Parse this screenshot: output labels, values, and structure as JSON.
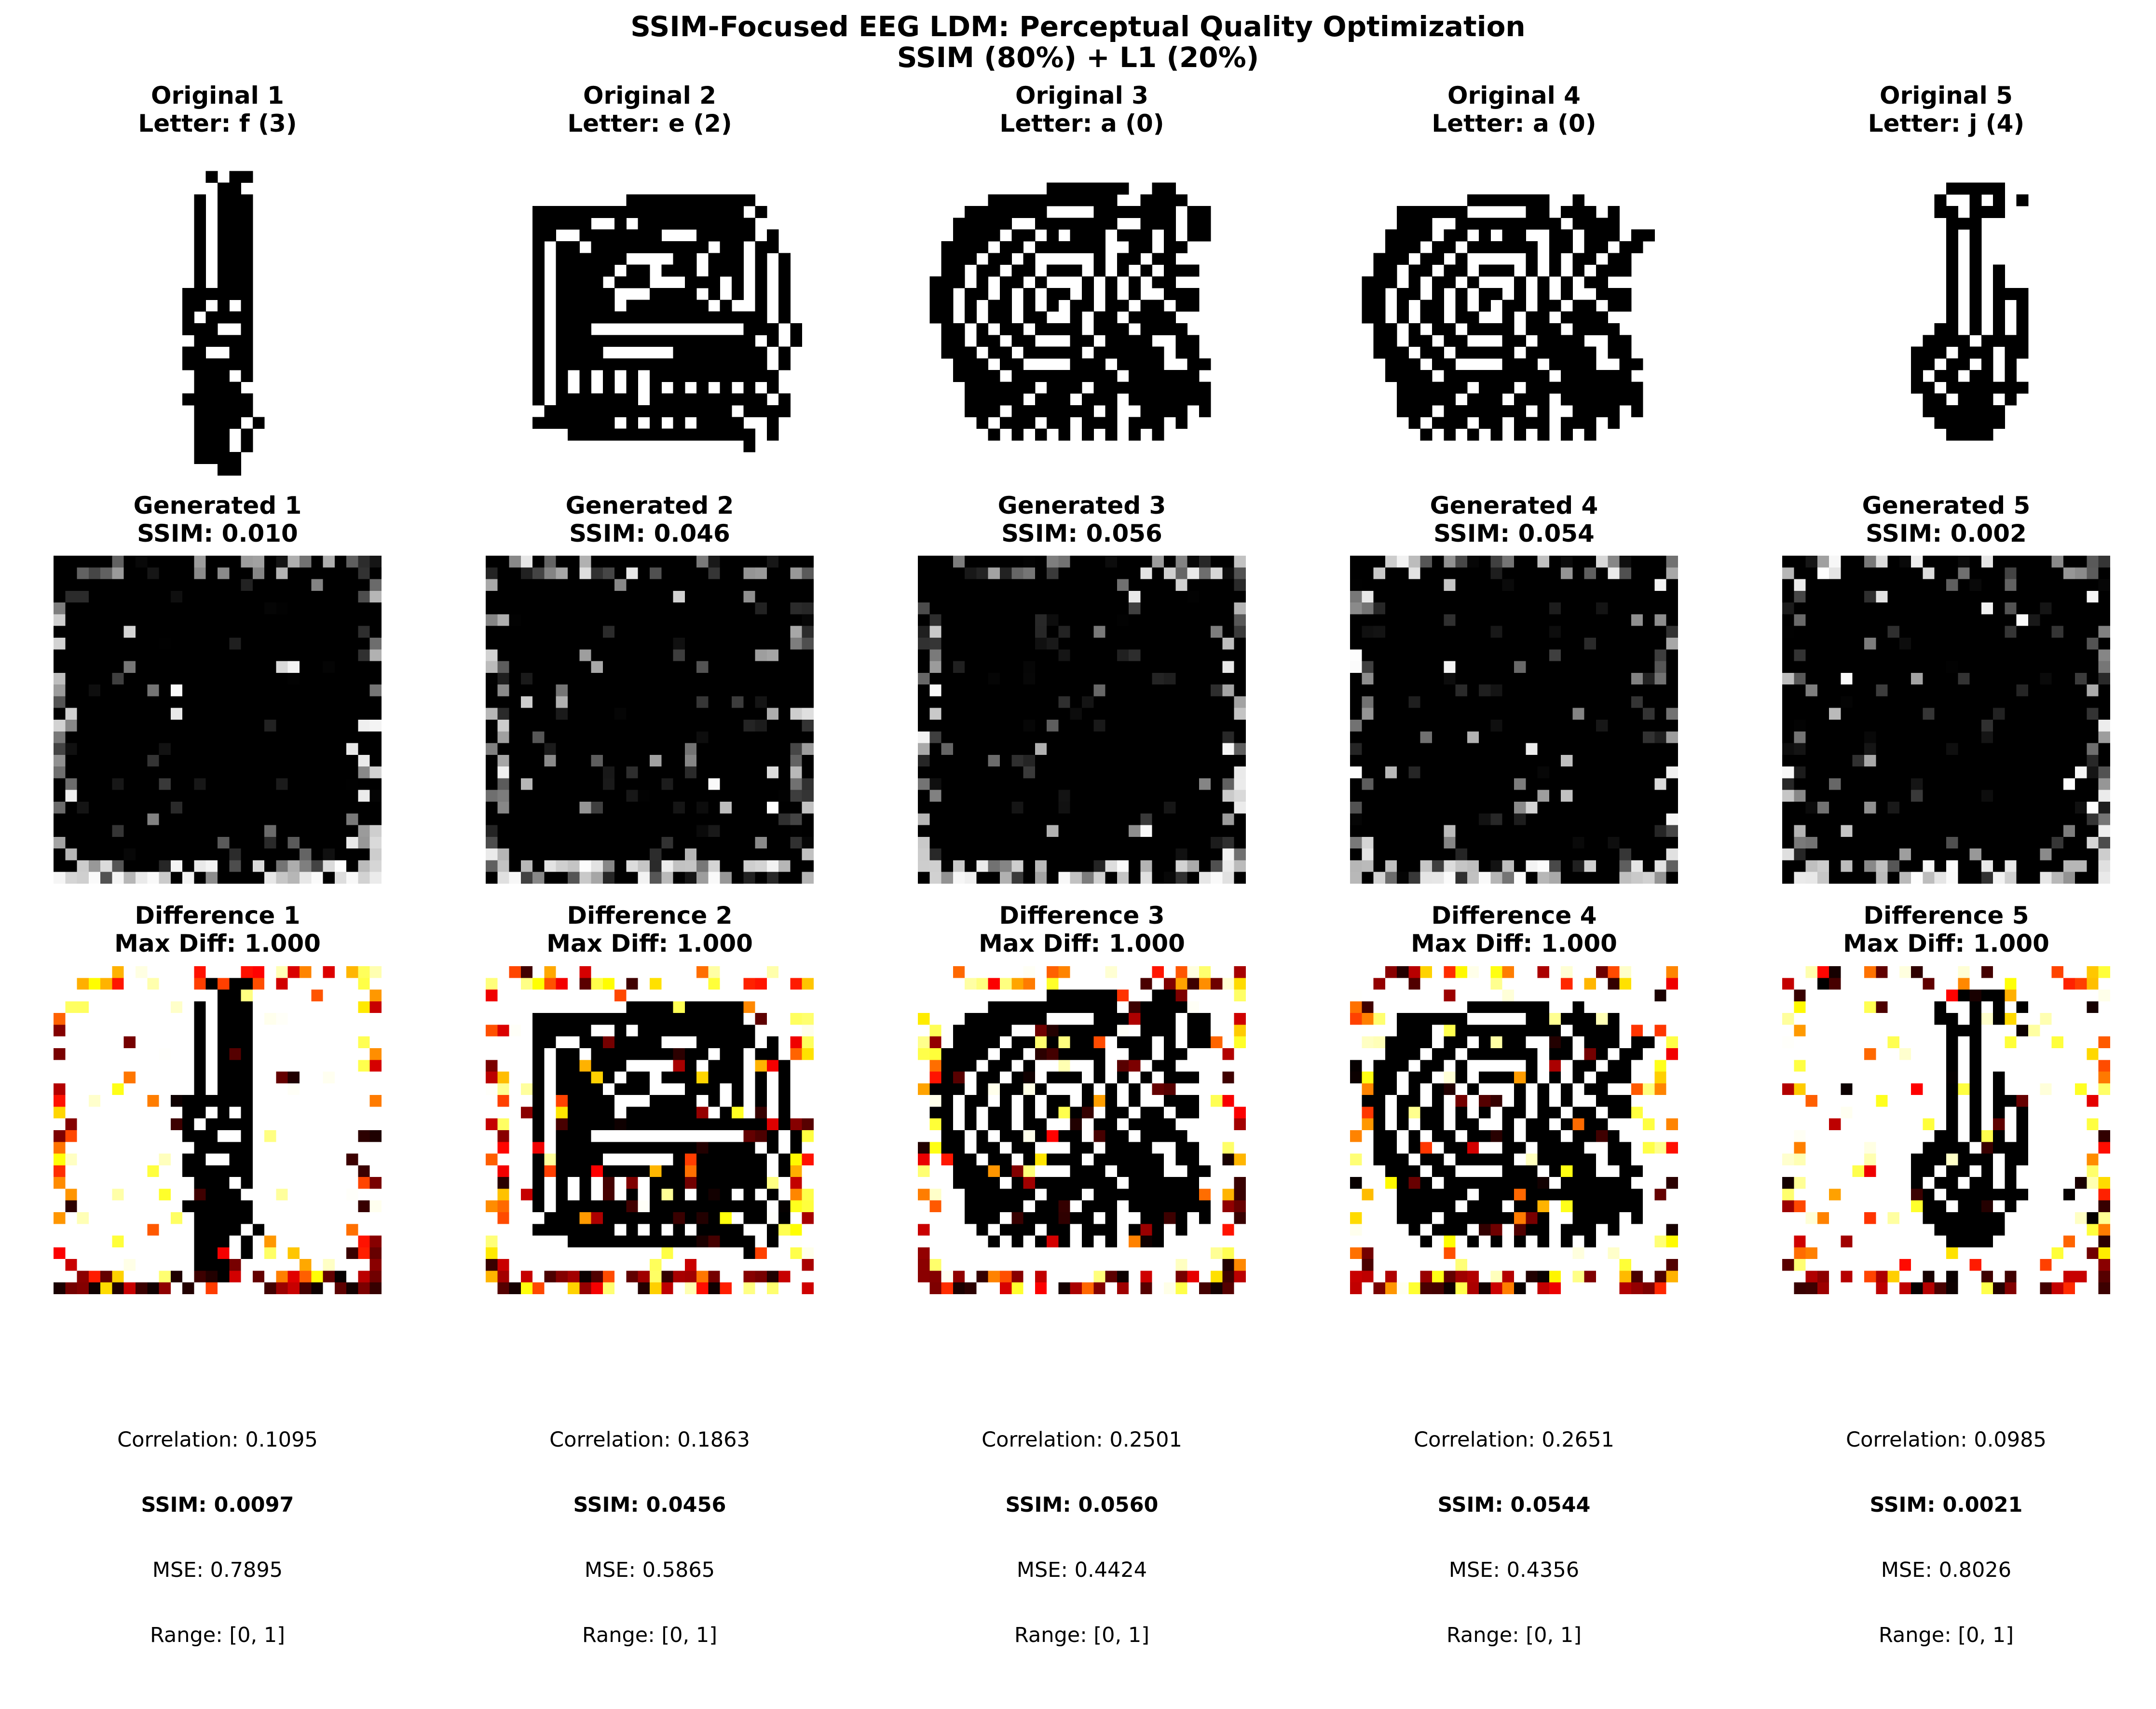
{
  "figure": {
    "title_line1": "SSIM-Focused EEG LDM: Perceptual Quality Optimization",
    "title_line2": "SSIM (80%) + L1 (20%)"
  },
  "chart_data": {
    "type": "heatmap",
    "grid_size": 28,
    "colormaps": {
      "original": "gray",
      "generated": "gray",
      "difference": "hot"
    },
    "samples": [
      {
        "original_title": "Original 1",
        "letter_label": "Letter: f (3)",
        "generated_title": "Generated 1",
        "ssim_label": "SSIM: 0.010",
        "difference_title": "Difference 1",
        "maxdiff_label": "Max Diff: 1.000",
        "correlation": "Correlation: 0.1095",
        "ssim": "SSIM: 0.0097",
        "mse": "MSE: 0.7895",
        "range": "Range: [0, 1]"
      },
      {
        "original_title": "Original 2",
        "letter_label": "Letter: e (2)",
        "generated_title": "Generated 2",
        "ssim_label": "SSIM: 0.046",
        "difference_title": "Difference 2",
        "maxdiff_label": "Max Diff: 1.000",
        "correlation": "Correlation: 0.1863",
        "ssim": "SSIM: 0.0456",
        "mse": "MSE: 0.5865",
        "range": "Range: [0, 1]"
      },
      {
        "original_title": "Original 3",
        "letter_label": "Letter: a (0)",
        "generated_title": "Generated 3",
        "ssim_label": "SSIM: 0.056",
        "difference_title": "Difference 3",
        "maxdiff_label": "Max Diff: 1.000",
        "correlation": "Correlation: 0.2501",
        "ssim": "SSIM: 0.0560",
        "mse": "MSE: 0.4424",
        "range": "Range: [0, 1]"
      },
      {
        "original_title": "Original 4",
        "letter_label": "Letter: a (0)",
        "generated_title": "Generated 4",
        "ssim_label": "SSIM: 0.054",
        "difference_title": "Difference 4",
        "maxdiff_label": "Max Diff: 1.000",
        "correlation": "Correlation: 0.2651",
        "ssim": "SSIM: 0.0544",
        "mse": "MSE: 0.4356",
        "range": "Range: [0, 1]"
      },
      {
        "original_title": "Original 5",
        "letter_label": "Letter: j (4)",
        "generated_title": "Generated 5",
        "ssim_label": "SSIM: 0.002",
        "difference_title": "Difference 5",
        "maxdiff_label": "Max Diff: 1.000",
        "correlation": "Correlation: 0.0985",
        "ssim": "SSIM: 0.0021",
        "mse": "MSE: 0.8026",
        "range": "Range: [0, 1]"
      }
    ],
    "original_masks": [
      [
        "............................",
        ".............#.##...........",
        "..............##............",
        "............#.###...........",
        "............#.###...........",
        "............#.###...........",
        "............#.###...........",
        "............#.###...........",
        "............#.###...........",
        "............#.###...........",
        "............#.###...........",
        "...........######...........",
        "...........##.#.#...........",
        "...........#.####...........",
        "...........###..#...........",
        "............#####...........",
        "...........##..##...........",
        "...........######...........",
        "............###.#...........",
        "............####............",
        "...........######...........",
        "............#####...........",
        "............####.#..........",
        "............###.#...........",
        "............###.#...........",
        "............####............",
        "..............##............",
        "............................"
      ],
      [
        "............................",
        "............................",
        "............................",
        "............###########.....",
        "....##################.#....",
        "....#####..#.##########.....",
        "....##..#######...#####.#...",
        "....#.##.##########.##.##...",
        "....#.######....##.###.#.#..",
        "....#.#####.##.###.###.#.#..",
        "....#.####.###...###.#.#.#..",
        "....#.#####...####.#.#.#.#..",
        "....#.#####.#######.#..#.#..",
        "....#.##################.#..",
        "....#.###.............###.#.",
        "....#.#################.#.#.",
        "....#.####......########.#..",
        "....#.##################.#..",
        "....#.#.#.#.#.###########...",
        "....#.#.#.#.#.#.#.#.#.#.#...",
        "....#.#######.##########.#..",
        ".....################.####..",
        "....#######.#.#.#.####..#...",
        ".......################.#...",
        "......................#.....",
        "............................",
        "............................",
        "............................"
      ],
      [
        "............................",
        "............................",
        "...........#######..##......",
        "......###########..####.....",
        "....#######....#######.##...",
        "...#####..#######..###.##...",
        "...####.##.#.###.###.#.##...",
        "..####.##.######..##.##.....",
        "..###.##.#.....#.##.##......",
        "..##.##.##.###.#.#.#.###....",
        ".###.#.##.#...#.#.#.##......",
        ".##.##.#.#.##.#.#.#..###....",
        ".##.#.##.#.#.##.##.##.##....",
        ".##.#.##.##..#.##.####......",
        "..##.#.##.####.###.####.....",
        "..##.##.##...##.####..##....",
        "..###.##.#####.######.##....",
        "...###.##....###.####..##...",
        "...####.#########.######....",
        "....######.###.##########...",
        "....#####.###.###.#######...",
        "....###.#######.#..####.#...",
        ".....#.###.##.###.###.#.....",
        "......#.#.#.#.#.#.#.#.......",
        "............................",
        "............................",
        "............................",
        "............................"
      ],
      [
        "............................",
        "............................",
        "............................",
        "..........#######..#........",
        "....######.....##.###.#.....",
        "....###..#########.####.....",
        "...####.##.#.##..##.###.##..",
        "...###.##.######.##.##.##...",
        "..###.##.#.....#.#.##.##....",
        "..##.##.##.###.#.#.#.###....",
        ".###.#.##.#...#.#.#.##......",
        ".##.##.#.#.##.#.#.#..###....",
        ".##.#.##.#.#.##.##.##.##....",
        ".##.#.##.##..#.##.####......",
        "..##.#.##.####.###.####.....",
        "..##.##.##...##.####..##....",
        "..###.##.#####.######.##....",
        "...###.##....###.####..##...",
        "...####.#########.######....",
        "....######.###.##########...",
        "....#####.###.###.#######...",
        "....###.#######.#..####.#...",
        ".....#.###.##.###.###.#.....",
        "......#.#.#.#.#.#.#.#.......",
        "............................",
        "............................",
        "............................",
        "............................"
      ],
      [
        "............................",
        "............................",
        "..............#####.........",
        ".............#..#.#.#.......",
        ".............##.###.........",
        "..............###...........",
        "..............#.#...........",
        "..............#.#...........",
        "..............#.#...........",
        "..............#.#.#.........",
        "..............#.#.#.........",
        "..............#.#.###.......",
        "..............#.#.#.#.......",
        "..............#.#.#.#.......",
        ".............##.#.#.#.......",
        "............####.####.......",
        "...........###.###.##.......",
        "...........##.##.#.#........",
        "...........#.##.##.#........",
        "...........##.#######.......",
        "............##.###.#........",
        "............#######.........",
        ".............######.........",
        "..............####..........",
        "............................",
        "............................",
        "............................",
        "............................"
      ]
    ]
  }
}
